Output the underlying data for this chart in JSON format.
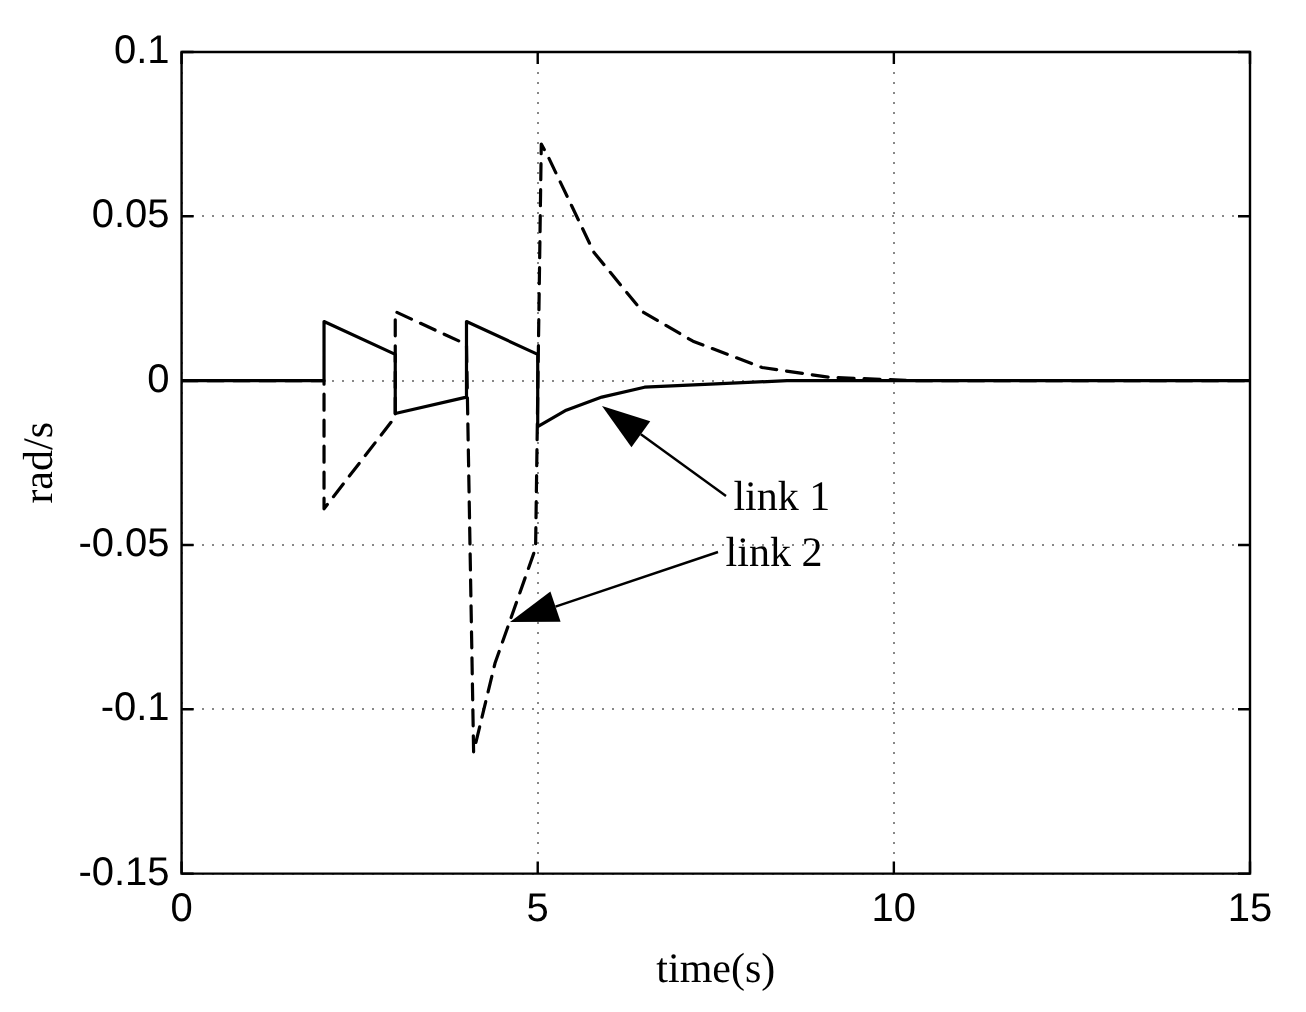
{
  "chart_data": {
    "type": "line",
    "xlabel": "time(s)",
    "ylabel": "rad/s",
    "xlim": [
      0,
      15
    ],
    "xticks": [
      0,
      5,
      10,
      15
    ],
    "ylim": [
      -0.15,
      0.1
    ],
    "yticks": [
      -0.15,
      -0.1,
      -0.05,
      0,
      0.05,
      0.1
    ],
    "grid": true,
    "marker": "none",
    "series": [
      {
        "color": "#000000",
        "line_style": "solid",
        "x": [
          0,
          2,
          2,
          3,
          3,
          4,
          4,
          5,
          5,
          5.4,
          5.9,
          6.5,
          7.5,
          8.5,
          10,
          15
        ],
        "values": [
          0,
          0,
          0.018,
          0.008,
          -0.01,
          -0.005,
          0.018,
          0.008,
          -0.014,
          -0.009,
          -0.005,
          -0.002,
          -0.001,
          0,
          0,
          0
        ]
      },
      {
        "color": "#000000",
        "line_style": "dashed",
        "x": [
          0,
          2,
          2,
          3,
          3,
          4,
          4.1,
          4.4,
          4.97,
          5.05,
          5.15,
          5.79,
          6.47,
          7.18,
          8.15,
          9.1,
          10.3,
          15
        ],
        "values": [
          0,
          0,
          -0.039,
          -0.011,
          0.021,
          0.011,
          -0.113,
          -0.086,
          -0.051,
          0.072,
          0.068,
          0.039,
          0.021,
          0.012,
          0.004,
          0.001,
          0,
          0
        ]
      }
    ],
    "annotations": [
      "link 1",
      "link 2"
    ]
  }
}
